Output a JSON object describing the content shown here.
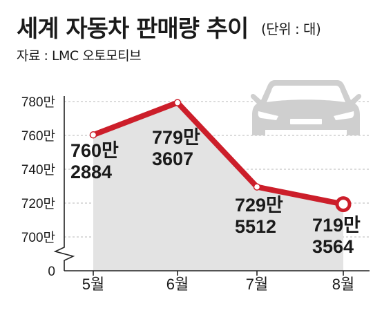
{
  "header": {
    "title": "세계 자동차 판매량 추이",
    "unit": "(단위 : 대)",
    "source": "자료 : LMC 오토모티브"
  },
  "colors": {
    "line": "#cc1e2a",
    "area": "#e3e3e3",
    "grid": "#cfcfcf",
    "car_icon": "#cfcfcf"
  },
  "decor": {
    "icon": "car-icon"
  },
  "chart_data": {
    "type": "line",
    "categories": [
      "5월",
      "6월",
      "7월",
      "8월"
    ],
    "values": [
      7602884,
      7793607,
      7295512,
      7193564
    ],
    "data_labels": [
      [
        "760만",
        "2884"
      ],
      [
        "779만",
        "3607"
      ],
      [
        "729만",
        "5512"
      ],
      [
        "719만",
        "3564"
      ]
    ],
    "y_ticks": [
      {
        "value": 7800000,
        "label": "780만"
      },
      {
        "value": 7600000,
        "label": "760만"
      },
      {
        "value": 7400000,
        "label": "740만"
      },
      {
        "value": 7200000,
        "label": "720만"
      },
      {
        "value": 7000000,
        "label": "700만"
      },
      {
        "value": 0,
        "label": "0"
      }
    ],
    "ylim": [
      7000000,
      7800000
    ],
    "axis_break": true,
    "grid": true,
    "highlight_last_point": true,
    "title": "",
    "xlabel": "",
    "ylabel": ""
  }
}
